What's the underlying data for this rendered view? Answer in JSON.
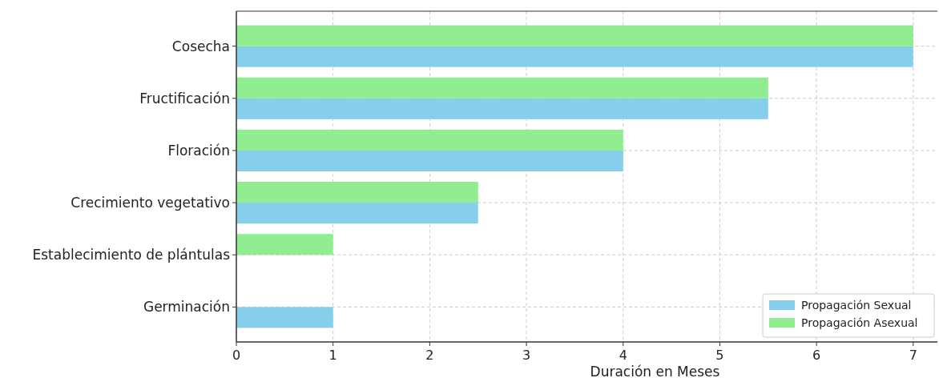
{
  "chart_data": {
    "type": "bar",
    "orientation": "horizontal",
    "xlabel": "Duración en Meses",
    "categories": [
      "Cosecha",
      "Fructificación",
      "Floración",
      "Crecimiento vegetativo",
      "Establecimiento de plántulas",
      "Germinación"
    ],
    "series": [
      {
        "name": "Propagación Sexual",
        "color": "#87ceeb",
        "values": [
          7,
          5.5,
          4,
          2.5,
          null,
          1
        ]
      },
      {
        "name": "Propagación Asexual",
        "color": "#90ee90",
        "values": [
          7,
          5.5,
          4,
          2.5,
          1,
          null
        ]
      }
    ],
    "xlim": [
      0,
      7.25
    ],
    "xticks": [
      0,
      1,
      2,
      3,
      4,
      5,
      6,
      7
    ],
    "grid": true,
    "legend": "bottom right"
  }
}
